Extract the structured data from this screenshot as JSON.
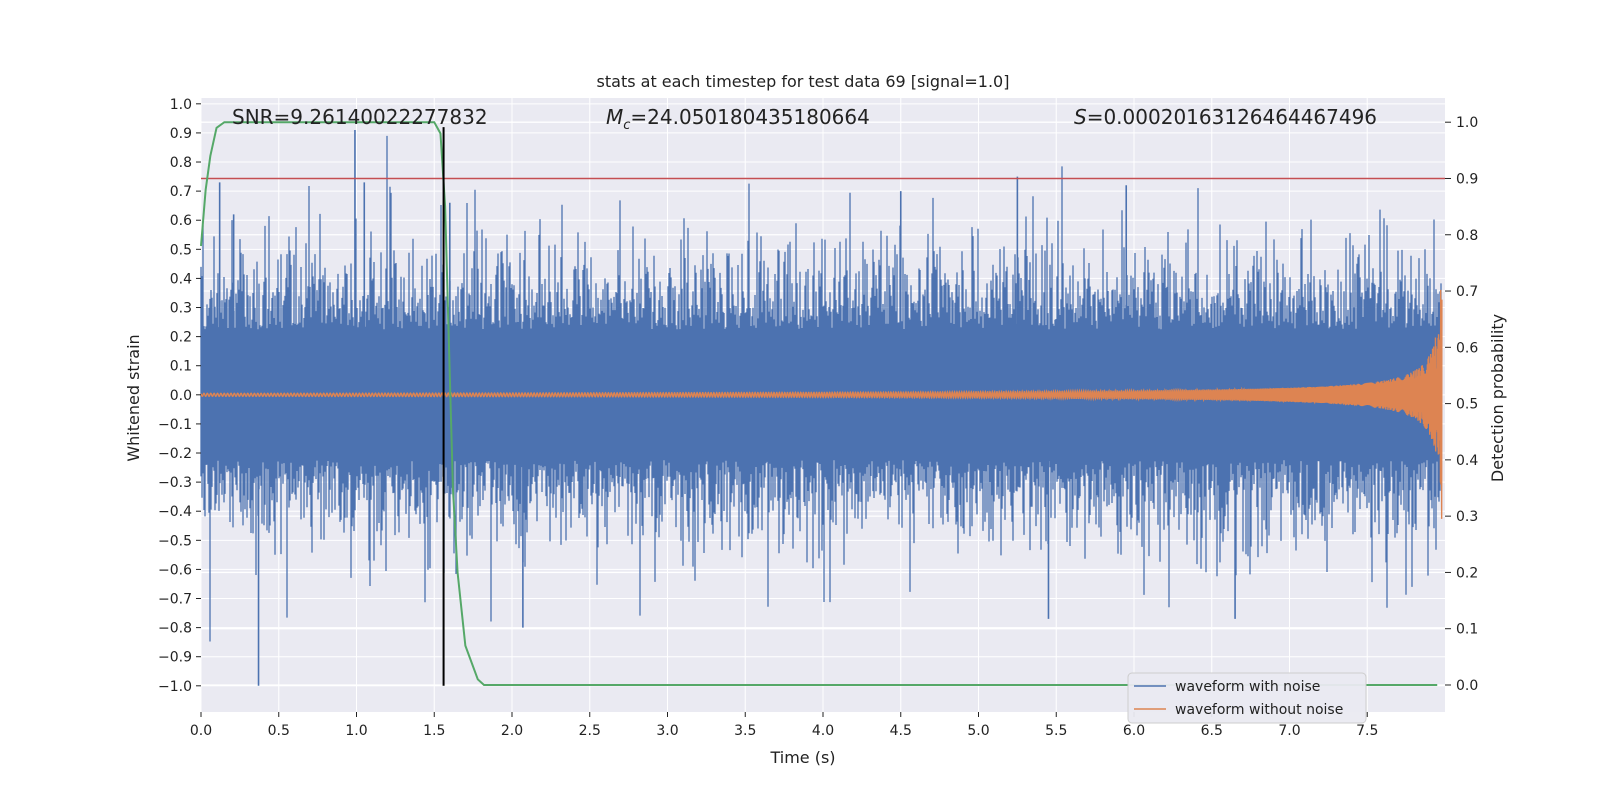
{
  "chart_data": {
    "type": "line",
    "title": "stats at each timestep for test data 69 [signal=1.0]",
    "xlabel": "Time (s)",
    "ylabel": "Whitened strain",
    "y2label": "Detection probability",
    "xlim": [
      0.0,
      8.0
    ],
    "ylim": [
      -1.09,
      1.02
    ],
    "y2lim": [
      -0.048,
      1.043
    ],
    "x_ticks": [
      0.0,
      0.5,
      1.0,
      1.5,
      2.0,
      2.5,
      3.0,
      3.5,
      4.0,
      4.5,
      5.0,
      5.5,
      6.0,
      6.5,
      7.0,
      7.5
    ],
    "y_ticks": [
      1.0,
      0.9,
      0.8,
      0.7,
      0.6,
      0.5,
      0.4,
      0.3,
      0.2,
      0.1,
      0.0,
      -0.1,
      -0.2,
      -0.3,
      -0.4,
      -0.5,
      -0.6,
      -0.7,
      -0.8,
      -0.9,
      -1.0
    ],
    "y2_ticks": [
      1.0,
      0.9,
      0.8,
      0.7,
      0.6,
      0.5,
      0.4,
      0.3,
      0.2,
      0.1,
      0.0
    ],
    "grid": true,
    "legend_position": "lower-right",
    "series": [
      {
        "name": "waveform with noise",
        "color": "#4c72b0",
        "axis": "left",
        "kind": "noise",
        "typical_amplitude": 0.3,
        "peak_max": 0.91,
        "peak_min": -1.0,
        "notable_peaks": [
          {
            "x": 0.12,
            "y": 0.73
          },
          {
            "x": 0.21,
            "y": 0.62
          },
          {
            "x": 0.37,
            "y": -1.0
          },
          {
            "x": 0.99,
            "y": 0.91
          },
          {
            "x": 1.05,
            "y": 0.73
          },
          {
            "x": 1.6,
            "y": 0.66
          },
          {
            "x": 2.07,
            "y": -0.8
          },
          {
            "x": 4.5,
            "y": 0.7
          },
          {
            "x": 5.25,
            "y": 0.75
          },
          {
            "x": 5.95,
            "y": 0.72
          },
          {
            "x": 5.45,
            "y": -0.77
          },
          {
            "x": 6.65,
            "y": -0.77
          }
        ]
      },
      {
        "name": "waveform without noise",
        "color": "#dd8452",
        "axis": "left",
        "kind": "chirp",
        "start_amplitude": 0.003,
        "end_amplitude": 0.46,
        "merger_time": 7.98
      },
      {
        "name": "detection probability",
        "color": "#55a868",
        "axis": "right",
        "x": [
          0.0,
          0.03,
          0.06,
          0.1,
          0.15,
          0.2,
          0.5,
          1.0,
          1.45,
          1.5,
          1.54,
          1.57,
          1.6,
          1.62,
          1.65,
          1.7,
          1.78,
          1.82,
          2.0,
          4.0,
          6.0,
          7.5,
          7.95
        ],
        "values": [
          0.78,
          0.88,
          0.94,
          0.99,
          1.0,
          1.0,
          1.0,
          1.0,
          1.0,
          1.0,
          0.98,
          0.85,
          0.55,
          0.35,
          0.2,
          0.07,
          0.01,
          0.0,
          0.0,
          0.0,
          0.0,
          0.0,
          0.0
        ]
      }
    ],
    "threshold": {
      "axis": "right",
      "value": 0.9,
      "color": "#c44e52"
    },
    "marker_time": {
      "x": 1.56,
      "color": "#000000"
    },
    "stats": {
      "snr": "SNR=9.26140022277832",
      "mc_symbol": "M",
      "mc_subscript": "c",
      "mc_value": "=24.050180435180664",
      "s_symbol": "S",
      "s_value": "=0.00020163126464467496"
    }
  }
}
